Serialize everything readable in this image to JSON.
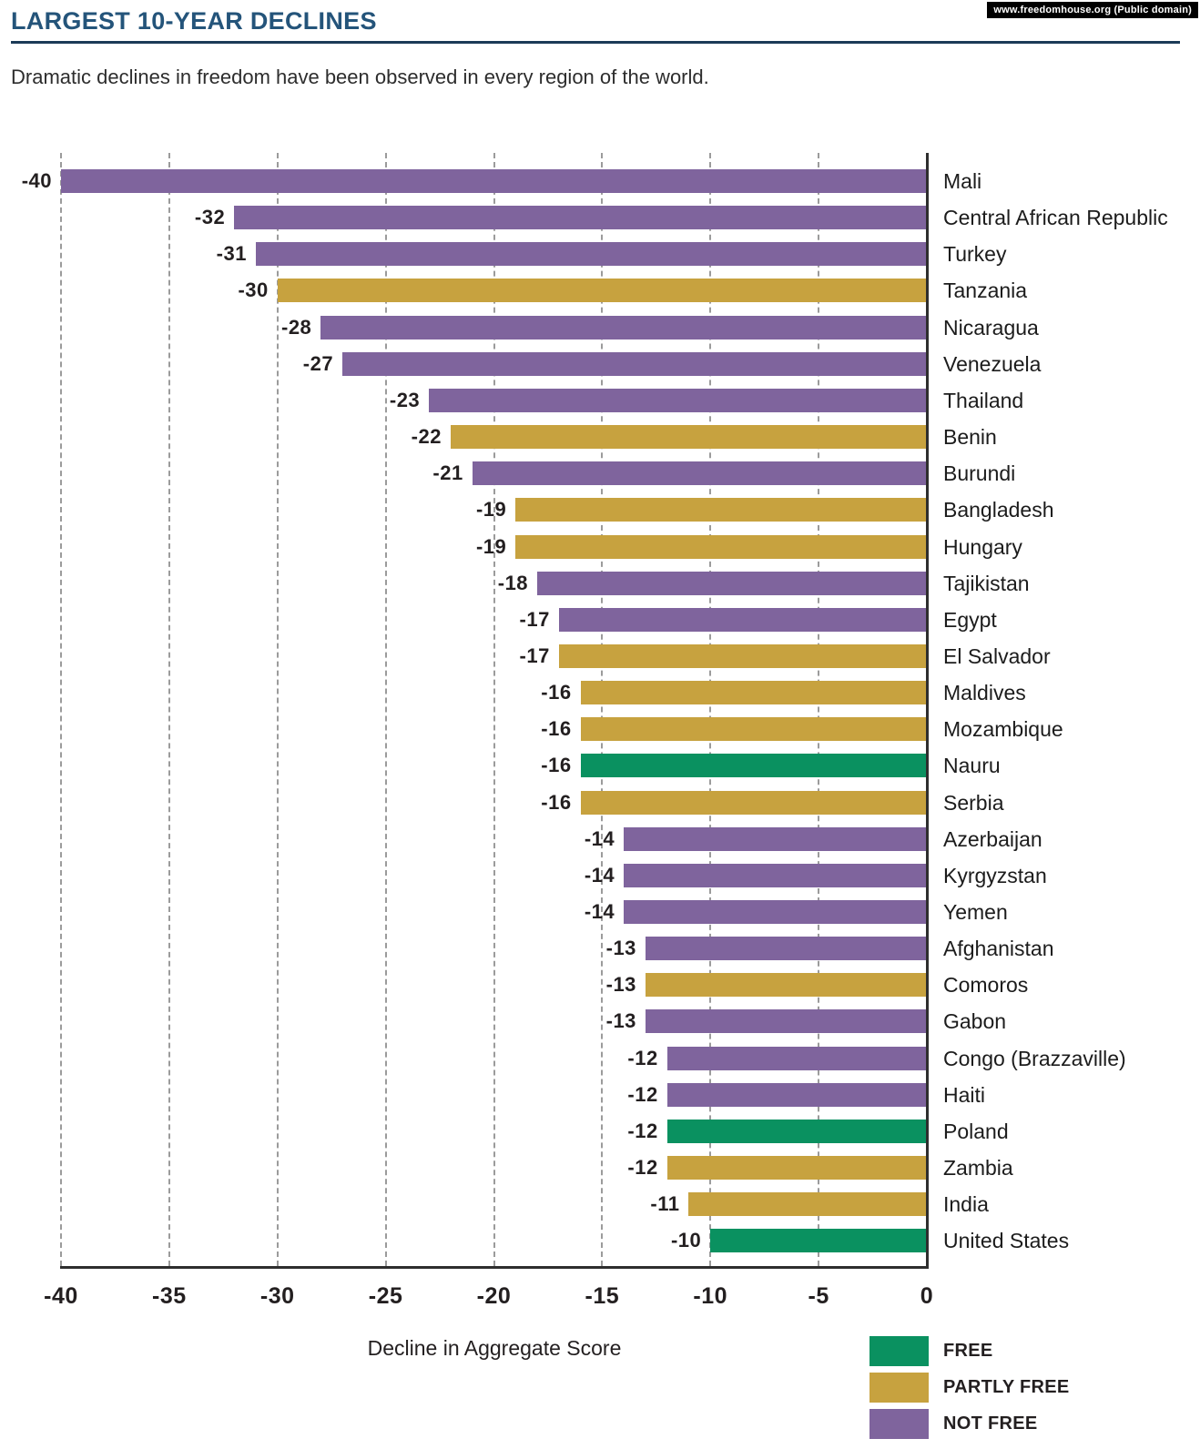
{
  "page": {
    "badge": "www.freedomhouse.org (Public domain)",
    "title": "LARGEST 10-YEAR DECLINES",
    "subtitle": "Dramatic declines in freedom have been observed in every region of the world."
  },
  "chart_data": {
    "type": "bar",
    "orientation": "horizontal",
    "title": "LARGEST 10-YEAR DECLINES",
    "xlabel": "Decline in Aggregate Score",
    "ylabel": "",
    "xlim": [
      -40,
      0
    ],
    "x_ticks": [
      -40,
      -35,
      -30,
      -25,
      -20,
      -15,
      -10,
      -5,
      0
    ],
    "grid": "vertical-dashed",
    "legend_position": "bottom-right",
    "legend": [
      {
        "label": "FREE",
        "color": "#0a9160"
      },
      {
        "label": "PARTLY FREE",
        "color": "#c7a23f"
      },
      {
        "label": "NOT FREE",
        "color": "#7f649d"
      }
    ],
    "bars": [
      {
        "country": "Mali",
        "value": -40,
        "status": "NOT FREE"
      },
      {
        "country": "Central African Republic",
        "value": -32,
        "status": "NOT FREE"
      },
      {
        "country": "Turkey",
        "value": -31,
        "status": "NOT FREE"
      },
      {
        "country": "Tanzania",
        "value": -30,
        "status": "PARTLY FREE"
      },
      {
        "country": "Nicaragua",
        "value": -28,
        "status": "NOT FREE"
      },
      {
        "country": "Venezuela",
        "value": -27,
        "status": "NOT FREE"
      },
      {
        "country": "Thailand",
        "value": -23,
        "status": "NOT FREE"
      },
      {
        "country": "Benin",
        "value": -22,
        "status": "PARTLY FREE"
      },
      {
        "country": "Burundi",
        "value": -21,
        "status": "NOT FREE"
      },
      {
        "country": "Bangladesh",
        "value": -19,
        "status": "PARTLY FREE"
      },
      {
        "country": "Hungary",
        "value": -19,
        "status": "PARTLY FREE"
      },
      {
        "country": "Tajikistan",
        "value": -18,
        "status": "NOT FREE"
      },
      {
        "country": "Egypt",
        "value": -17,
        "status": "NOT FREE"
      },
      {
        "country": "El Salvador",
        "value": -17,
        "status": "PARTLY FREE"
      },
      {
        "country": "Maldives",
        "value": -16,
        "status": "PARTLY FREE"
      },
      {
        "country": "Mozambique",
        "value": -16,
        "status": "PARTLY FREE"
      },
      {
        "country": "Nauru",
        "value": -16,
        "status": "FREE"
      },
      {
        "country": "Serbia",
        "value": -16,
        "status": "PARTLY FREE"
      },
      {
        "country": "Azerbaijan",
        "value": -14,
        "status": "NOT FREE"
      },
      {
        "country": "Kyrgyzstan",
        "value": -14,
        "status": "NOT FREE"
      },
      {
        "country": "Yemen",
        "value": -14,
        "status": "NOT FREE"
      },
      {
        "country": "Afghanistan",
        "value": -13,
        "status": "NOT FREE"
      },
      {
        "country": "Comoros",
        "value": -13,
        "status": "PARTLY FREE"
      },
      {
        "country": "Gabon",
        "value": -13,
        "status": "NOT FREE"
      },
      {
        "country": "Congo (Brazzaville)",
        "value": -12,
        "status": "NOT FREE"
      },
      {
        "country": "Haiti",
        "value": -12,
        "status": "NOT FREE"
      },
      {
        "country": "Poland",
        "value": -12,
        "status": "FREE"
      },
      {
        "country": "Zambia",
        "value": -12,
        "status": "PARTLY FREE"
      },
      {
        "country": "India",
        "value": -11,
        "status": "PARTLY FREE"
      },
      {
        "country": "United States",
        "value": -10,
        "status": "FREE"
      }
    ]
  },
  "colors": {
    "title": "#24547a",
    "title_rule": "#1b3a57",
    "free": "#0a9160",
    "partly_free": "#c7a23f",
    "not_free": "#7f649d",
    "axis": "#2e2e2e",
    "gridline": "#9b9b9b",
    "text": "#231f20"
  }
}
